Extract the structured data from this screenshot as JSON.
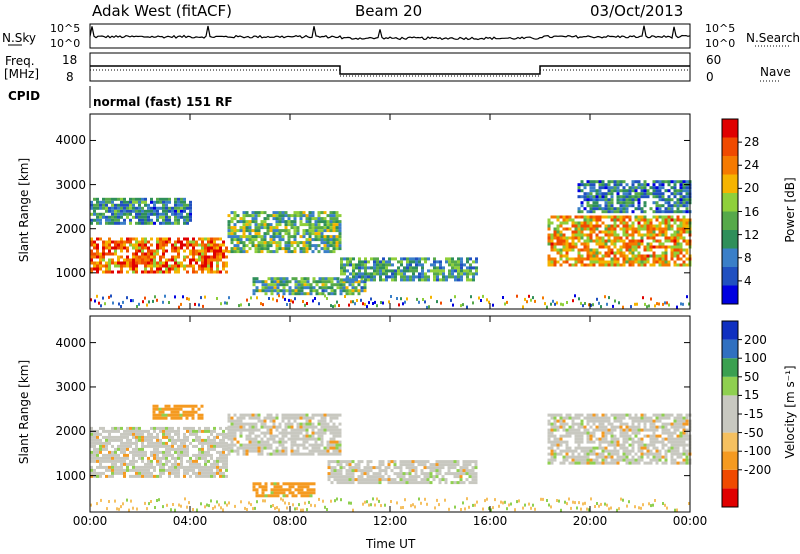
{
  "header": {
    "site": "Adak West (fitACF)",
    "beam": "Beam 20",
    "date": "03/Oct/2013"
  },
  "strip": {
    "nsky_label": "N.Sky",
    "nsky_ticks": [
      "10^5",
      "10^0"
    ],
    "nsearch_label": "N.Search",
    "nsearch_ticks": [
      "10^5",
      "10^0"
    ],
    "freq_label": "Freq.",
    "freq_unit": "[MHz]",
    "freq_ticks": [
      "18",
      "8"
    ],
    "nave_label": "Nave",
    "nave_ticks": [
      "60",
      "0"
    ],
    "cpid_label": "CPID",
    "cpid_value": "normal (fast) 151 RF"
  },
  "colors": {
    "power": [
      "#0000e0",
      "#2050c0",
      "#3a7fc8",
      "#2f8f5a",
      "#56a94a",
      "#8fcf3a",
      "#f5b400",
      "#f57a00",
      "#f04a00",
      "#e00000"
    ],
    "velocity": [
      "#e00000",
      "#f04a00",
      "#f59a20",
      "#f5c060",
      "#c8c8c0",
      "#c8c8c0",
      "#8fd050",
      "#3aa050",
      "#3070c0",
      "#1030c0"
    ]
  },
  "chart_data": [
    {
      "type": "heatmap",
      "name": "power",
      "xlabel": "",
      "ylabel": "Slant Range [km]",
      "x_ticks": [
        "00:00",
        "04:00",
        "08:00",
        "12:00",
        "16:00",
        "20:00",
        "00:00"
      ],
      "y_ticks": [
        1000,
        2000,
        3000,
        4000
      ],
      "ylim": [
        180,
        4600
      ],
      "colorbar_label": "Power [dB]",
      "colorbar_ticks": [
        4,
        8,
        12,
        16,
        20,
        24,
        28
      ],
      "colorbar_range": [
        0,
        32
      ],
      "bands": [
        {
          "t": [
            0,
            5.5
          ],
          "range": [
            1000,
            1800
          ],
          "value": 25
        },
        {
          "t": [
            5.5,
            10
          ],
          "range": [
            1500,
            2400
          ],
          "value": 14
        },
        {
          "t": [
            0,
            4
          ],
          "range": [
            2100,
            2700
          ],
          "value": 10
        },
        {
          "t": [
            6.5,
            11
          ],
          "range": [
            500,
            900
          ],
          "value": 13
        },
        {
          "t": [
            10,
            15.5
          ],
          "range": [
            850,
            1350
          ],
          "value": 12
        },
        {
          "t": [
            18.3,
            24
          ],
          "range": [
            1200,
            2300
          ],
          "value": 22
        },
        {
          "t": [
            19.5,
            24
          ],
          "range": [
            2400,
            3100
          ],
          "value": 9
        }
      ]
    },
    {
      "type": "heatmap",
      "name": "velocity",
      "xlabel": "Time UT",
      "ylabel": "Slant Range [km]",
      "x_ticks": [
        "00:00",
        "04:00",
        "08:00",
        "12:00",
        "16:00",
        "20:00",
        "00:00"
      ],
      "y_ticks": [
        1000,
        2000,
        3000,
        4000
      ],
      "ylim": [
        180,
        4600
      ],
      "colorbar_label": "Velocity [m s⁻¹]",
      "colorbar_ticks": [
        200,
        100,
        50,
        15,
        -15,
        -50,
        -100,
        -200
      ],
      "bands": [
        {
          "t": [
            0,
            5.5
          ],
          "range": [
            1000,
            2100
          ],
          "value": 0
        },
        {
          "t": [
            5.5,
            10
          ],
          "range": [
            1500,
            2400
          ],
          "value": 0
        },
        {
          "t": [
            2.5,
            4.5
          ],
          "range": [
            2300,
            2600
          ],
          "value": -60
        },
        {
          "t": [
            6.5,
            9
          ],
          "range": [
            550,
            850
          ],
          "value": -60
        },
        {
          "t": [
            9.5,
            15.5
          ],
          "range": [
            850,
            1350
          ],
          "value": 0
        },
        {
          "t": [
            18.3,
            24
          ],
          "range": [
            1300,
            2400
          ],
          "value": 0
        }
      ]
    }
  ]
}
